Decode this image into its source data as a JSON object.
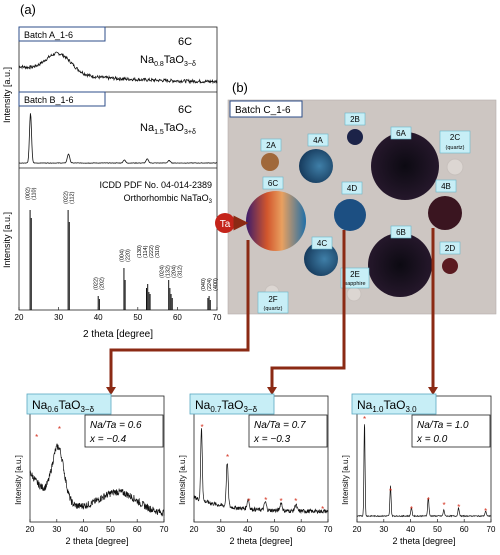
{
  "panel_a": {
    "label": "(a)",
    "batch_a": {
      "tag": "Batch A_1-6",
      "sample": "6C",
      "formula_base": "Na",
      "formula_sub1": "0.8",
      "formula_mid": "TaO",
      "formula_sub2": "3−δ"
    },
    "batch_b": {
      "tag": "Batch B_1-6",
      "sample": "6C",
      "formula_base": "Na",
      "formula_sub1": "1.5",
      "formula_mid": "TaO",
      "formula_sub2": "3+δ"
    },
    "reference": {
      "line1": "ICDD PDF No. 04-014-2389",
      "line2_pre": "Orthorhombic NaTaO",
      "line2_sub": "3"
    },
    "ylabel_top": "Intensity [a.u.]",
    "ylabel_bottom": "Intensity [a.u.]",
    "xlabel": "2 theta [degree]",
    "xticks": [
      "20",
      "30",
      "40",
      "50",
      "60",
      "70"
    ]
  },
  "panel_b": {
    "label": "(b)",
    "batch_tag": "Batch C_1-6",
    "source_label": "Ta",
    "spots": [
      {
        "id": "2B",
        "color": "#1c2348"
      },
      {
        "id": "6A",
        "color": "#120e1a"
      },
      {
        "id": "2C",
        "sub": "(quartz)",
        "color": "#d8d3cf"
      },
      {
        "id": "2A",
        "color": "#a0683a"
      },
      {
        "id": "4A",
        "color": "#2f6b80"
      },
      {
        "id": "6C",
        "color": "#c65a2c"
      },
      {
        "id": "4D",
        "color": "#1c4f82"
      },
      {
        "id": "4B",
        "color": "#3a1520"
      },
      {
        "id": "4C",
        "color": "#2c6f88"
      },
      {
        "id": "6B",
        "color": "#120f18"
      },
      {
        "id": "2D",
        "color": "#5a1a20"
      },
      {
        "id": "2E",
        "sub": "sapphire",
        "color": "#d8d3cf"
      },
      {
        "id": "2F",
        "sub": "(quartz)",
        "color": "#d8d3cf"
      }
    ]
  },
  "bottom_plots": [
    {
      "formula_base": "Na",
      "formula_sub1": "0.6",
      "formula_mid": "TaO",
      "formula_sub2": "3−δ",
      "ratio": "Na/Ta = 0.6",
      "xval": "x = −0.4",
      "ylabel": "Intensity [a.u.]",
      "xlabel": "2 theta [degree]",
      "xticks": [
        "20",
        "30",
        "40",
        "50",
        "60",
        "70"
      ]
    },
    {
      "formula_base": "Na",
      "formula_sub1": "0.7",
      "formula_mid": "TaO",
      "formula_sub2": "3−δ",
      "ratio": "Na/Ta = 0.7",
      "xval": "x = −0.3",
      "ylabel": "Intensity [a.u.]",
      "xlabel": "2 theta [degree]",
      "xticks": [
        "20",
        "30",
        "40",
        "50",
        "60",
        "70"
      ]
    },
    {
      "formula_base": "Na",
      "formula_sub1": "1.0",
      "formula_mid": "TaO",
      "formula_sub2": "3.0",
      "ratio": "Na/Ta = 1.0",
      "xval": "x = 0.0",
      "ylabel": "Intensity [a.u.]",
      "xlabel": "2 theta [degree]",
      "xticks": [
        "20",
        "30",
        "40",
        "50",
        "60",
        "70"
      ]
    }
  ],
  "chart_data": [
    {
      "type": "bar",
      "title": "ICDD PDF No. 04-014-2389 Orthorhombic NaTaO3",
      "xlabel": "2 theta [degree]",
      "ylabel": "Intensity [a.u.]",
      "xlim": [
        20,
        70
      ],
      "peaks": [
        {
          "x": 22.8,
          "y": 100,
          "label": "(002)"
        },
        {
          "x": 23.1,
          "y": 92,
          "label": "(110)"
        },
        {
          "x": 32.4,
          "y": 100,
          "label": "(022)"
        },
        {
          "x": 32.7,
          "y": 88,
          "label": "(112)"
        },
        {
          "x": 40.0,
          "y": 14,
          "label": "(022)"
        },
        {
          "x": 40.3,
          "y": 11,
          "label": "(202)"
        },
        {
          "x": 46.5,
          "y": 42,
          "label": "(004)"
        },
        {
          "x": 46.8,
          "y": 30,
          "label": "(220)"
        },
        {
          "x": 52.2,
          "y": 22,
          "label": "(130)"
        },
        {
          "x": 52.5,
          "y": 26,
          "label": "(114)"
        },
        {
          "x": 52.8,
          "y": 18,
          "label": "(222)"
        },
        {
          "x": 53.1,
          "y": 16,
          "label": "(310)"
        },
        {
          "x": 57.8,
          "y": 30,
          "label": "(024)"
        },
        {
          "x": 58.1,
          "y": 22,
          "label": "(132)"
        },
        {
          "x": 58.4,
          "y": 16,
          "label": "(204)"
        },
        {
          "x": 58.7,
          "y": 12,
          "label": "(312)"
        },
        {
          "x": 67.7,
          "y": 12,
          "label": "(040)"
        },
        {
          "x": 68.0,
          "y": 14,
          "label": "(224)"
        },
        {
          "x": 68.3,
          "y": 10,
          "label": "(400)"
        }
      ]
    }
  ]
}
